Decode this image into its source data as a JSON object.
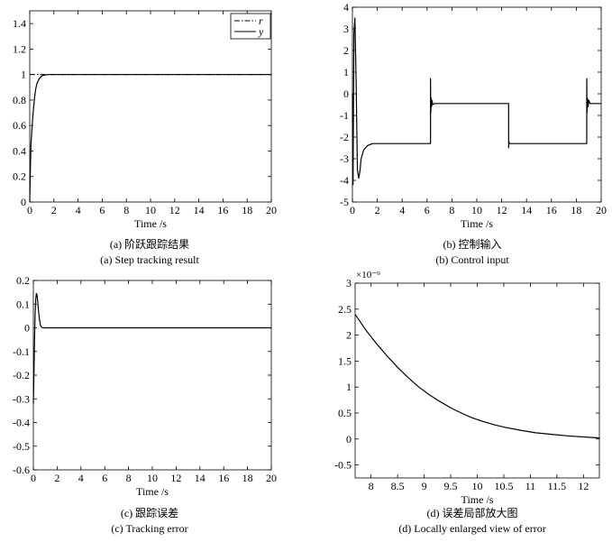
{
  "charts": [
    {
      "id": "a",
      "caption_cn": "(a) 阶跃跟踪结果",
      "caption_en": "(a) Step tracking result",
      "chart_data": {
        "type": "line",
        "xlabel": "Time /s",
        "ylabel": "",
        "xlim": [
          0,
          20
        ],
        "ylim": [
          0,
          1.5
        ],
        "xticks": [
          "0",
          "2",
          "4",
          "6",
          "8",
          "10",
          "12",
          "14",
          "16",
          "18",
          "20"
        ],
        "yticks": [
          "0",
          "0.2",
          "0.4",
          "0.6",
          "0.8",
          "1",
          "1.2",
          "1.4"
        ],
        "grid": false,
        "legend": "top-right",
        "series": [
          {
            "name": "r",
            "style": "dashdot",
            "x": [
              0,
              20
            ],
            "y": [
              1,
              1
            ]
          },
          {
            "name": "y",
            "style": "solid",
            "x": [
              0,
              0.05,
              0.1,
              0.2,
              0.3,
              0.4,
              0.5,
              0.6,
              0.8,
              1.0,
              1.2,
              1.5,
              2,
              3,
              5,
              10,
              20
            ],
            "y": [
              0,
              0.25,
              0.45,
              0.6,
              0.72,
              0.82,
              0.89,
              0.93,
              0.97,
              0.99,
              0.995,
              1.0,
              1.0,
              1.0,
              1.0,
              1.0,
              1.0
            ]
          }
        ]
      }
    },
    {
      "id": "b",
      "caption_cn": "(b) 控制输入",
      "caption_en": "(b) Control input",
      "chart_data": {
        "type": "line",
        "xlabel": "Time /s",
        "ylabel": "",
        "xlim": [
          0,
          20
        ],
        "ylim": [
          -5,
          4
        ],
        "xticks": [
          "0",
          "2",
          "4",
          "6",
          "8",
          "10",
          "12",
          "14",
          "16",
          "18",
          "20"
        ],
        "yticks": [
          "-5",
          "-4",
          "-3",
          "-2",
          "-1",
          "0",
          "1",
          "2",
          "3",
          "4"
        ],
        "grid": false,
        "series": [
          {
            "name": "",
            "x": [
              0,
              0.05,
              0.12,
              0.2,
              0.3,
              0.4,
              0.5,
              0.6,
              0.7,
              0.9,
              1.2,
              1.6,
              2.5,
              6.28,
              6.28,
              6.3,
              6.33,
              6.36,
              6.4,
              6.45,
              6.6,
              12.56,
              12.56,
              12.58,
              12.62,
              12.7,
              18.84,
              18.84,
              18.86,
              18.9,
              18.95,
              19.0,
              19.1,
              20
            ],
            "y": [
              0,
              -4.2,
              2.8,
              3.5,
              0.5,
              -3.5,
              -3.9,
              -3.6,
              -3.0,
              -2.6,
              -2.4,
              -2.3,
              -2.3,
              -2.3,
              0.7,
              -0.9,
              -0.2,
              -0.6,
              -0.3,
              -0.5,
              -0.45,
              -0.45,
              -2.5,
              -2.2,
              -2.3,
              -2.3,
              -2.3,
              0.7,
              -0.9,
              -0.2,
              -0.6,
              -0.3,
              -0.45,
              -0.45
            ]
          }
        ]
      }
    },
    {
      "id": "c",
      "caption_cn": "(c) 跟踪误差",
      "caption_en": "(c) Tracking error",
      "chart_data": {
        "type": "line",
        "xlabel": "Time /s",
        "ylabel": "",
        "xlim": [
          0,
          20
        ],
        "ylim": [
          -0.6,
          0.2
        ],
        "xticks": [
          "0",
          "2",
          "4",
          "6",
          "8",
          "10",
          "12",
          "14",
          "16",
          "18",
          "20"
        ],
        "yticks": [
          "-0.6",
          "-0.5",
          "-0.4",
          "-0.3",
          "-0.2",
          "-0.1",
          "0",
          "0.1",
          "0.2"
        ],
        "grid": false,
        "series": [
          {
            "name": "",
            "x": [
              0,
              0.05,
              0.1,
              0.15,
              0.2,
              0.25,
              0.3,
              0.35,
              0.4,
              0.5,
              0.6,
              0.7,
              0.8,
              1.0,
              2,
              20
            ],
            "y": [
              -0.32,
              -0.2,
              -0.05,
              0.06,
              0.12,
              0.145,
              0.14,
              0.12,
              0.09,
              0.04,
              0.01,
              0.002,
              0,
              0,
              0,
              0
            ]
          }
        ]
      }
    },
    {
      "id": "d",
      "caption_cn": "(d) 误差局部放大图",
      "caption_en": "(d) Locally enlarged view of error",
      "chart_data": {
        "type": "line",
        "xlabel": "Time /s",
        "ylabel": "",
        "xlim": [
          7.7,
          12.3
        ],
        "ylim": [
          -0.75,
          3
        ],
        "y_scale_label": "×10⁻⁹",
        "xticks": [
          "8",
          "8.5",
          "9",
          "9.5",
          "10",
          "10.5",
          "11",
          "11.5",
          "12"
        ],
        "yticks": [
          "-0.5",
          "0",
          "0.5",
          "1",
          "1.5",
          "2",
          "2.5",
          "3"
        ],
        "grid": false,
        "series": [
          {
            "name": "",
            "x": [
              7.7,
              7.9,
              8.1,
              8.3,
              8.5,
              8.7,
              8.9,
              9.1,
              9.3,
              9.5,
              9.7,
              9.9,
              10.1,
              10.3,
              10.5,
              10.8,
              11.1,
              11.4,
              11.7,
              12.0,
              12.3
            ],
            "y": [
              2.4,
              2.1,
              1.84,
              1.6,
              1.38,
              1.18,
              1.0,
              0.85,
              0.72,
              0.6,
              0.5,
              0.41,
              0.34,
              0.28,
              0.23,
              0.17,
              0.12,
              0.09,
              0.06,
              0.04,
              0.02
            ]
          }
        ]
      }
    }
  ]
}
